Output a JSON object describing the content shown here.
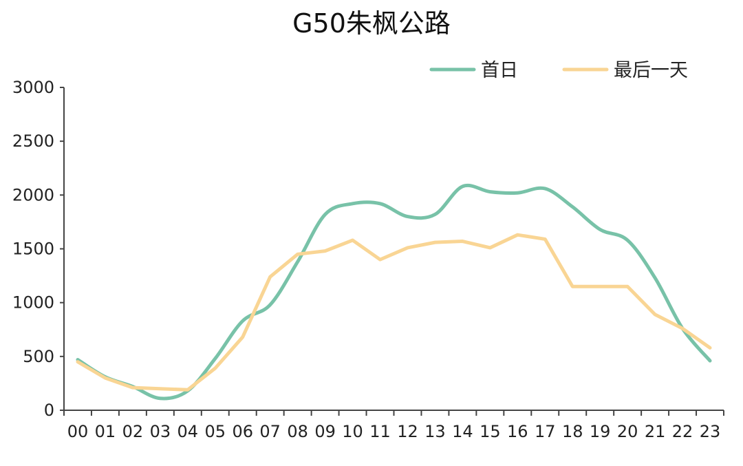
{
  "chart_data": {
    "type": "line",
    "title": "G50朱枫公路",
    "xlabel": "",
    "ylabel": "",
    "categories": [
      "00",
      "01",
      "02",
      "03",
      "04",
      "05",
      "06",
      "07",
      "08",
      "09",
      "10",
      "11",
      "12",
      "13",
      "14",
      "15",
      "16",
      "17",
      "18",
      "19",
      "20",
      "21",
      "22",
      "23"
    ],
    "ylim": [
      0,
      3000
    ],
    "yticks": [
      0,
      500,
      1000,
      1500,
      2000,
      2500,
      3000
    ],
    "legend_position": "top-right",
    "grid": false,
    "series": [
      {
        "name": "首日",
        "color": "#78C2A8",
        "values": [
          470,
          310,
          220,
          110,
          180,
          480,
          830,
          980,
          1380,
          1820,
          1920,
          1920,
          1800,
          1820,
          2080,
          2030,
          2020,
          2060,
          1890,
          1680,
          1580,
          1230,
          760,
          460
        ]
      },
      {
        "name": "最后一天",
        "color": "#F9D594",
        "values": [
          450,
          300,
          210,
          200,
          190,
          390,
          680,
          1240,
          1450,
          1480,
          1580,
          1400,
          1510,
          1560,
          1570,
          1510,
          1630,
          1590,
          1150,
          1150,
          1150,
          890,
          760,
          580
        ]
      }
    ]
  }
}
